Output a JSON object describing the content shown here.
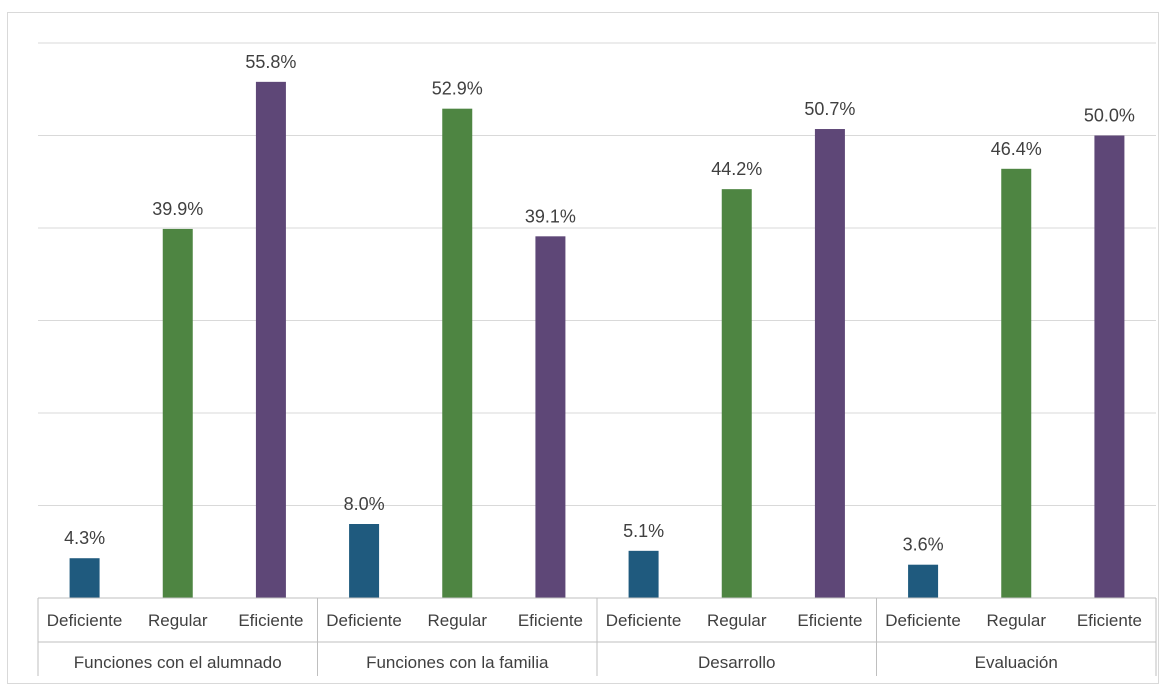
{
  "chart_data": {
    "type": "bar",
    "title": "",
    "xlabel": "",
    "ylabel": "",
    "ylim": [
      0,
      60
    ],
    "grid": true,
    "legend": "none",
    "groups": [
      {
        "label": "Funciones con el alumnado",
        "categories": [
          "Deficiente",
          "Regular",
          "Eficiente"
        ],
        "values": [
          4.3,
          39.9,
          55.8
        ],
        "value_labels": [
          "4.3%",
          "39.9%",
          "55.8%"
        ]
      },
      {
        "label": "Funciones con la familia",
        "categories": [
          "Deficiente",
          "Regular",
          "Eficiente"
        ],
        "values": [
          8.0,
          52.9,
          39.1
        ],
        "value_labels": [
          "8.0%",
          "52.9%",
          "39.1%"
        ]
      },
      {
        "label": "Desarrollo",
        "categories": [
          "Deficiente",
          "Regular",
          "Eficiente"
        ],
        "values": [
          5.1,
          44.2,
          50.7
        ],
        "value_labels": [
          "5.1%",
          "44.2%",
          "50.7%"
        ]
      },
      {
        "label": "Evaluación",
        "categories": [
          "Deficiente",
          "Regular",
          "Eficiente"
        ],
        "values": [
          3.6,
          46.4,
          50.0
        ],
        "value_labels": [
          "3.6%",
          "46.4%",
          "50.0%"
        ]
      }
    ],
    "colors": {
      "Deficiente": "#1f5a7e",
      "Regular": "#4e8542",
      "Eficiente": "#5e4777"
    },
    "gridline_color": "#d9d9d9",
    "axis_color": "#bfbfbf",
    "label_color": "#404040"
  }
}
